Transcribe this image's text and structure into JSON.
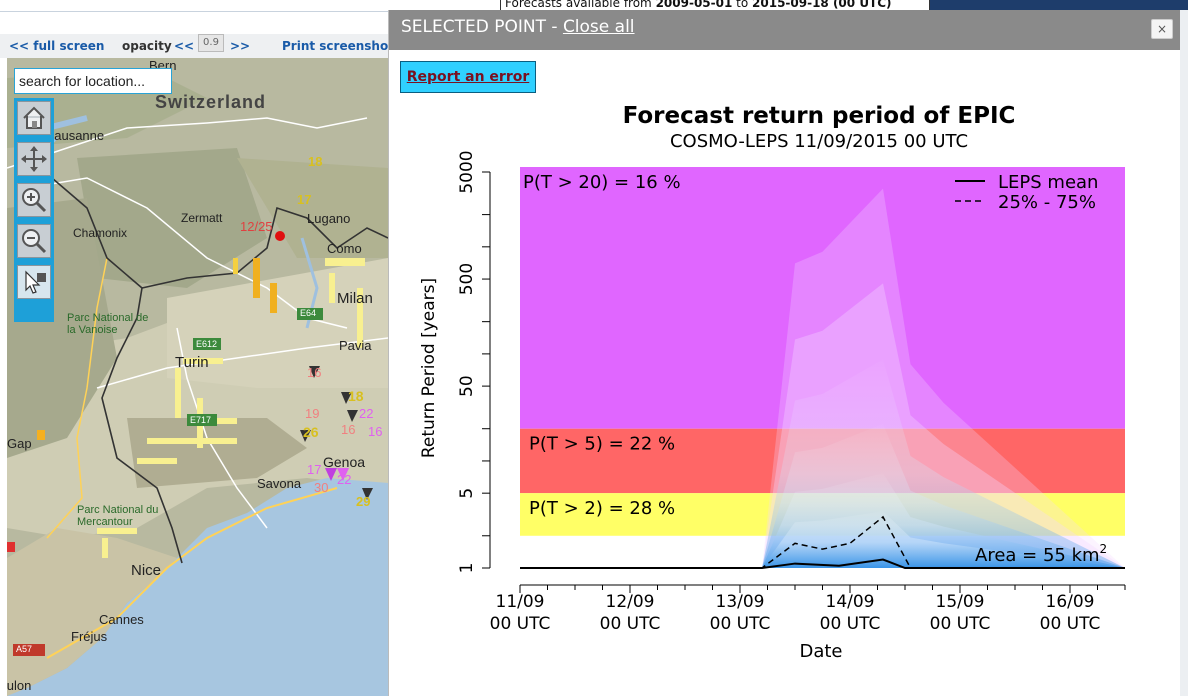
{
  "top": {
    "availability_prefix": "Forecasts available from ",
    "date_from": "2009-05-01",
    "availability_to": " to ",
    "date_to": "2015-09-18 (00 UTC)"
  },
  "toolbar": {
    "full_screen_label": "<< full screen",
    "opacity_label": "opacity",
    "opacity_decrease": "<<",
    "opacity_value": "0.9",
    "opacity_increase": ">>",
    "print_label": "Print screensho"
  },
  "map": {
    "search_placeholder": "search for location...",
    "tools": [
      "home-icon",
      "pan-icon",
      "zoom-in-icon",
      "zoom-out-icon",
      "select-point-icon"
    ],
    "place_labels": [
      "Bern",
      "Switzerland",
      "Lausanne",
      "Chamonix",
      "Zermatt",
      "Lugano",
      "Como",
      "Milan",
      "E64",
      "Parc National de la Vanoise",
      "E612",
      "Turin",
      "Pavia",
      "E717",
      "Gap",
      "Genoa",
      "Savona",
      "Parc National du Mercantour",
      "Nice",
      "Cannes",
      "Fréjus",
      "A57",
      "Toulon"
    ],
    "marker_labels": [
      "18",
      "17",
      "12/25",
      "16",
      "18",
      "19",
      "22",
      "26",
      "16",
      "16",
      "17",
      "30",
      "22",
      "29"
    ]
  },
  "panel": {
    "title": "SELECTED POINT - ",
    "close_all": "Close all",
    "close_x": "×",
    "report_error": "Report an error"
  },
  "chart_data": {
    "type": "area",
    "title": "Forecast return period of EPIC",
    "subtitle": "COSMO-LEPS 11/09/2015 00 UTC",
    "ylabel": "Return Period [years]",
    "xlabel": "Date",
    "y_scale": "log",
    "yticks": [
      "1",
      "5",
      "50",
      "500",
      "5000"
    ],
    "xticks": [
      {
        "day": "11/09",
        "hour": "00 UTC"
      },
      {
        "day": "12/09",
        "hour": "00 UTC"
      },
      {
        "day": "13/09",
        "hour": "00 UTC"
      },
      {
        "day": "14/09",
        "hour": "00 UTC"
      },
      {
        "day": "15/09",
        "hour": "00 UTC"
      },
      {
        "day": "16/09",
        "hour": "00 UTC"
      }
    ],
    "bands": [
      {
        "label": "P(T > 20) = 16 %",
        "from": 20,
        "to": 5000,
        "color": "#e066ff"
      },
      {
        "label": "P(T > 5) = 22 %",
        "from": 5,
        "to": 20,
        "color": "#ff6666"
      },
      {
        "label": "P(T > 2) = 28 %",
        "from": 2,
        "to": 5,
        "color": "#ffff66"
      }
    ],
    "legend": [
      {
        "label": "LEPS mean",
        "style": "solid"
      },
      {
        "label": "25% - 75%",
        "style": "dashed"
      }
    ],
    "legend_position": "top-right",
    "area_label": "Area = 55 km",
    "area_superscript": "2",
    "series": [
      {
        "name": "LEPS mean",
        "x_days": [
          0,
          2.2,
          2.5,
          2.9,
          3.3,
          3.5,
          5.5
        ],
        "y": [
          1,
          1,
          1.1,
          1.05,
          1.2,
          1,
          1
        ]
      },
      {
        "name": "25% - 75%",
        "x_days": [
          0,
          2.2,
          2.5,
          2.75,
          3.0,
          3.3,
          3.55,
          5.5
        ],
        "y": [
          1,
          1,
          1.7,
          1.5,
          1.7,
          3,
          1,
          1
        ]
      }
    ],
    "ensemble_envelope": {
      "x_days": [
        2.2,
        2.5,
        2.75,
        3.3,
        3.55,
        3.85,
        5.5
      ],
      "y_max": [
        1,
        700,
        900,
        3500,
        80,
        35,
        1
      ]
    }
  }
}
